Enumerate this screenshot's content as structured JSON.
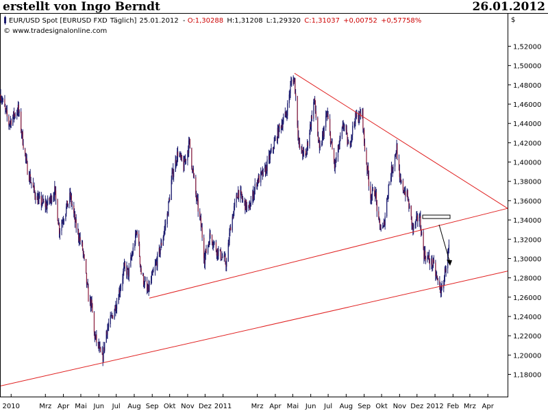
{
  "header": {
    "author": "erstellt von Ingo Berndt",
    "date": "26.01.2012"
  },
  "info": {
    "instrument": "EUR/USD Spot [EURUSD FXD",
    "period": "Täglich]",
    "date": "25.01.2012",
    "open": "O:1,30288",
    "high": "H:1,31208",
    "low": "L:1,29320",
    "close": "C:1,31037",
    "change": "+0,00752",
    "change_pct": "+0,57758%",
    "copyright": "© www.tradesignalonline.com",
    "currency": "$"
  },
  "colors": {
    "up_candle": "#1a1a6e",
    "down_candle": "#8b1a3a",
    "trendline": "#e02020",
    "info_red": "#cc0000"
  },
  "chart_data": {
    "type": "candlestick",
    "title": "EUR/USD Spot [EURUSD FXD Täglich]",
    "yticks": [
      "1,18000",
      "1,20000",
      "1,22000",
      "1,24000",
      "1,26000",
      "1,28000",
      "1,30000",
      "1,32000",
      "1,34000",
      "1,36000",
      "1,38000",
      "1,40000",
      "1,42000",
      "1,44000",
      "1,46000",
      "1,48000",
      "1,50000",
      "1,52000"
    ],
    "ylim": [
      1.165,
      1.53
    ],
    "xlim": [
      "2009-12-14",
      "2012-05-05"
    ],
    "xticks": [
      {
        "label": "2010",
        "date": "2010-01-01"
      },
      {
        "label": "Mrz",
        "date": "2010-03-01"
      },
      {
        "label": "Apr",
        "date": "2010-04-01"
      },
      {
        "label": "Mai",
        "date": "2010-05-01"
      },
      {
        "label": "Jun",
        "date": "2010-06-01"
      },
      {
        "label": "Jul",
        "date": "2010-07-01"
      },
      {
        "label": "Aug",
        "date": "2010-08-01"
      },
      {
        "label": "Sep",
        "date": "2010-09-01"
      },
      {
        "label": "Okt",
        "date": "2010-10-01"
      },
      {
        "label": "Nov",
        "date": "2010-11-01"
      },
      {
        "label": "Dez",
        "date": "2010-12-01"
      },
      {
        "label": "2011",
        "date": "2011-01-01"
      },
      {
        "label": "Mrz",
        "date": "2011-03-01"
      },
      {
        "label": "Apr",
        "date": "2011-04-01"
      },
      {
        "label": "Mai",
        "date": "2011-05-01"
      },
      {
        "label": "Jun",
        "date": "2011-06-01"
      },
      {
        "label": "Jul",
        "date": "2011-07-01"
      },
      {
        "label": "Aug",
        "date": "2011-08-01"
      },
      {
        "label": "Sep",
        "date": "2011-09-01"
      },
      {
        "label": "Okt",
        "date": "2011-10-01"
      },
      {
        "label": "Nov",
        "date": "2011-11-01"
      },
      {
        "label": "Dez",
        "date": "2011-12-01"
      },
      {
        "label": "2012",
        "date": "2012-01-01"
      },
      {
        "label": "Feb",
        "date": "2012-02-01"
      },
      {
        "label": "Mrz",
        "date": "2012-03-01"
      },
      {
        "label": "Apr",
        "date": "2012-04-01"
      }
    ],
    "price_path": [
      [
        "2009-12-14",
        1.47
      ],
      [
        "2009-12-28",
        1.44
      ],
      [
        "2010-01-13",
        1.455
      ],
      [
        "2010-01-28",
        1.395
      ],
      [
        "2010-02-09",
        1.37
      ],
      [
        "2010-02-17",
        1.36
      ],
      [
        "2010-03-03",
        1.355
      ],
      [
        "2010-03-17",
        1.37
      ],
      [
        "2010-03-25",
        1.33
      ],
      [
        "2010-04-13",
        1.365
      ],
      [
        "2010-04-22",
        1.335
      ],
      [
        "2010-05-04",
        1.31
      ],
      [
        "2010-05-14",
        1.26
      ],
      [
        "2010-05-20",
        1.25
      ],
      [
        "2010-05-24",
        1.222
      ],
      [
        "2010-06-07",
        1.195
      ],
      [
        "2010-06-14",
        1.225
      ],
      [
        "2010-06-21",
        1.235
      ],
      [
        "2010-07-02",
        1.255
      ],
      [
        "2010-07-15",
        1.29
      ],
      [
        "2010-07-22",
        1.285
      ],
      [
        "2010-08-06",
        1.33
      ],
      [
        "2010-08-13",
        1.285
      ],
      [
        "2010-08-24",
        1.265
      ],
      [
        "2010-09-03",
        1.285
      ],
      [
        "2010-09-15",
        1.31
      ],
      [
        "2010-09-27",
        1.345
      ],
      [
        "2010-10-05",
        1.385
      ],
      [
        "2010-10-15",
        1.41
      ],
      [
        "2010-10-25",
        1.395
      ],
      [
        "2010-11-04",
        1.42
      ],
      [
        "2010-11-14",
        1.37
      ],
      [
        "2010-11-25",
        1.33
      ],
      [
        "2010-11-30",
        1.3
      ],
      [
        "2010-12-10",
        1.325
      ],
      [
        "2010-12-20",
        1.31
      ],
      [
        "2011-01-07",
        1.295
      ],
      [
        "2011-01-14",
        1.335
      ],
      [
        "2011-01-27",
        1.37
      ],
      [
        "2011-02-04",
        1.36
      ],
      [
        "2011-02-14",
        1.35
      ],
      [
        "2011-02-28",
        1.38
      ],
      [
        "2011-03-14",
        1.39
      ],
      [
        "2011-03-25",
        1.41
      ],
      [
        "2011-04-08",
        1.435
      ],
      [
        "2011-04-20",
        1.45
      ],
      [
        "2011-04-29",
        1.485
      ],
      [
        "2011-05-04",
        1.485
      ],
      [
        "2011-05-12",
        1.415
      ],
      [
        "2011-05-23",
        1.405
      ],
      [
        "2011-06-07",
        1.465
      ],
      [
        "2011-06-16",
        1.41
      ],
      [
        "2011-06-29",
        1.45
      ],
      [
        "2011-07-12",
        1.395
      ],
      [
        "2011-07-28",
        1.44
      ],
      [
        "2011-08-05",
        1.415
      ],
      [
        "2011-08-16",
        1.445
      ],
      [
        "2011-08-29",
        1.45
      ],
      [
        "2011-09-01",
        1.42
      ],
      [
        "2011-09-12",
        1.365
      ],
      [
        "2011-09-20",
        1.37
      ],
      [
        "2011-09-26",
        1.335
      ],
      [
        "2011-10-04",
        1.33
      ],
      [
        "2011-10-14",
        1.38
      ],
      [
        "2011-10-27",
        1.415
      ],
      [
        "2011-11-01",
        1.38
      ],
      [
        "2011-11-14",
        1.365
      ],
      [
        "2011-11-24",
        1.33
      ],
      [
        "2011-12-05",
        1.345
      ],
      [
        "2011-12-13",
        1.305
      ],
      [
        "2011-12-20",
        1.3
      ],
      [
        "2011-12-29",
        1.293
      ],
      [
        "2012-01-06",
        1.275
      ],
      [
        "2012-01-13",
        1.265
      ],
      [
        "2012-01-19",
        1.29
      ],
      [
        "2012-01-25",
        1.31
      ]
    ],
    "trendlines": [
      {
        "name": "upper-support",
        "from": [
          "2009-12-14",
          1.168
        ],
        "to": [
          "2012-05-05",
          1.287
        ]
      },
      {
        "name": "lower-support",
        "from": [
          "2010-08-27",
          1.259
        ],
        "to": [
          "2012-05-05",
          1.352
        ]
      },
      {
        "name": "resistance",
        "from": [
          "2011-05-04",
          1.492
        ],
        "to": [
          "2012-05-05",
          1.352
        ]
      }
    ]
  }
}
